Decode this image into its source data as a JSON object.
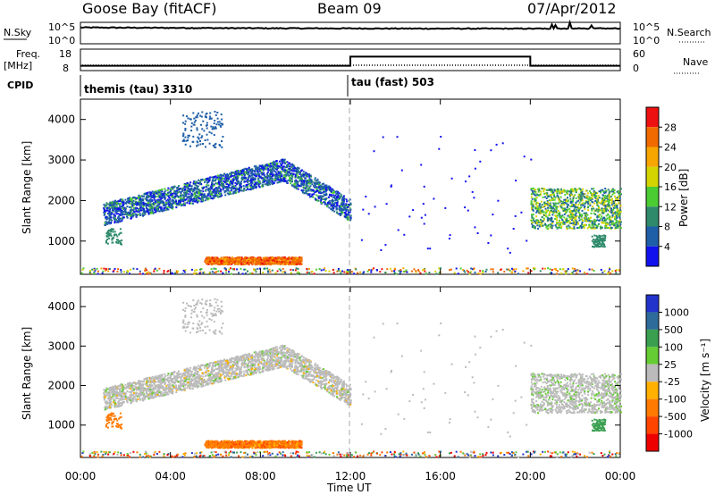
{
  "header": {
    "station": "Goose Bay (fitACF)",
    "beam": "Beam 09",
    "date": "07/Apr/2012"
  },
  "top_panels": {
    "nsky_label": "N.Sky",
    "nsky_ticks": [
      "10^5",
      "10^0"
    ],
    "nsearch_label": "N.Search",
    "freq_label_1": "Freq.",
    "freq_label_2": "[MHz]",
    "freq_ticks": [
      "18",
      "8"
    ],
    "nave_ticks": [
      "60",
      "0"
    ],
    "nave_label": "Nave",
    "cpid_label": "CPID",
    "cpid_1": "themis (tau) 3310",
    "cpid_2": "tau (fast) 503"
  },
  "power_colorbar": {
    "label": "Power [dB]",
    "ticks": [
      "28",
      "24",
      "20",
      "16",
      "12",
      "8",
      "4"
    ],
    "colors": [
      "#ee1111",
      "#f06a00",
      "#f7a600",
      "#d4d400",
      "#4ccc33",
      "#2e8a6a",
      "#1f5fa8",
      "#1111ee"
    ]
  },
  "velocity_colorbar": {
    "label": "Velocity [m s⁻¹]",
    "ticks": [
      "1000",
      "500",
      "100",
      "25",
      "-25",
      "-100",
      "-500",
      "-1000"
    ],
    "colors": [
      "#2233cc",
      "#2e6b9a",
      "#3aa050",
      "#66cc33",
      "#bbbbbb",
      "#ffb000",
      "#ff7a00",
      "#ff4400",
      "#ee0000"
    ]
  },
  "chart_data": [
    {
      "type": "heatmap",
      "title": "Power",
      "xlabel": "",
      "ylabel": "Slant Range [km]",
      "xlim": [
        0,
        24
      ],
      "ylim": [
        180,
        4500
      ],
      "xticks": [
        "00:00",
        "04:00",
        "08:00",
        "12:00",
        "16:00",
        "20:00",
        "00:00"
      ],
      "yticks": [
        1000,
        2000,
        3000,
        4000
      ],
      "colorbar": "Power [dB]",
      "scatter_regions": [
        {
          "t_start": 0.9,
          "t_end": 12.0,
          "range_km": [
            1500,
            2900
          ],
          "power_db": [
            8,
            20
          ],
          "desc": "main arc"
        },
        {
          "t_start": 5.5,
          "t_end": 9.8,
          "range_km": [
            420,
            600
          ],
          "power_db": [
            20,
            30
          ],
          "desc": "near-range echoes"
        },
        {
          "t_start": 19.9,
          "t_end": 24.0,
          "range_km": [
            1300,
            2300
          ],
          "power_db": [
            8,
            24
          ],
          "desc": "late patch"
        }
      ]
    },
    {
      "type": "heatmap",
      "title": "Velocity",
      "xlabel": "Time UT",
      "ylabel": "Slant Range [km]",
      "xlim": [
        0,
        24
      ],
      "ylim": [
        180,
        4500
      ],
      "xticks": [
        "00:00",
        "04:00",
        "08:00",
        "12:00",
        "16:00",
        "20:00",
        "00:00"
      ],
      "yticks": [
        1000,
        2000,
        3000,
        4000
      ],
      "colorbar": "Velocity [m s⁻¹]",
      "scatter_regions": [
        {
          "t_start": 0.9,
          "t_end": 12.0,
          "range_km": [
            1500,
            2900
          ],
          "velocity_ms": [
            -25,
            25
          ],
          "desc": "main arc"
        },
        {
          "t_start": 5.5,
          "t_end": 9.8,
          "range_km": [
            420,
            600
          ],
          "velocity_ms": [
            -500,
            -100
          ],
          "desc": "near-range echoes"
        },
        {
          "t_start": 19.9,
          "t_end": 24.0,
          "range_km": [
            1300,
            2300
          ],
          "velocity_ms": [
            -25,
            25
          ],
          "desc": "late patch"
        }
      ]
    }
  ],
  "freq_series": {
    "x": [
      0,
      12,
      12,
      20,
      20,
      24
    ],
    "y_nave": [
      12,
      12,
      40,
      40,
      12,
      12
    ]
  },
  "nsky_series": {
    "level_log": [
      4.1,
      4.0,
      3.9,
      3.85,
      3.8,
      3.8,
      3.85
    ]
  }
}
